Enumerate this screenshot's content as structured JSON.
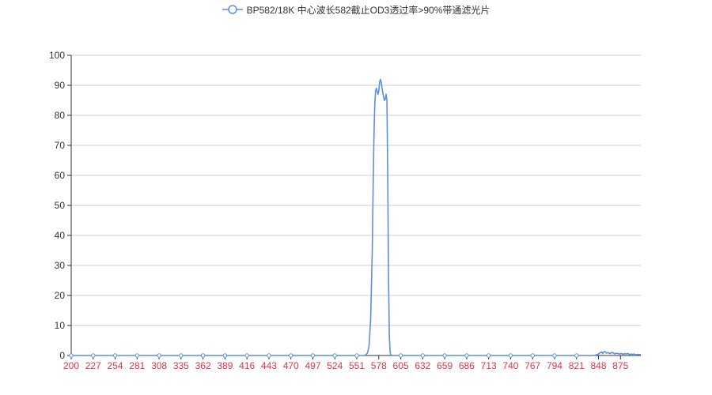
{
  "colors": {
    "series": "#5b8fe0",
    "grid": "#cccccc",
    "axis_line": "#333333",
    "x_tick_label": "#e0344a",
    "y_tick_label": "#333333"
  },
  "legend": {
    "label": "BP582/18K 中心波长582截止OD3透过率>90%带通滤光片",
    "icon": "line-circle-icon"
  },
  "chart_data": {
    "type": "line",
    "title": "",
    "xlabel": "",
    "ylabel": "",
    "xlim": [
      200,
      900
    ],
    "ylim": [
      0,
      100
    ],
    "grid": true,
    "legend_position": "top-center",
    "x_ticks": [
      "200",
      "227",
      "254",
      "281",
      "308",
      "335",
      "362",
      "389",
      "416",
      "443",
      "470",
      "497",
      "524",
      "551",
      "578",
      "605",
      "632",
      "659",
      "686",
      "713",
      "740",
      "767",
      "794",
      "821",
      "848",
      "875"
    ],
    "y_ticks": [
      "0",
      "10",
      "20",
      "30",
      "40",
      "50",
      "60",
      "70",
      "80",
      "90",
      "100"
    ],
    "series": [
      {
        "name": "BP582/18K 中心波长582截止OD3透过率>90%带通滤光片",
        "points": [
          [
            200,
            0
          ],
          [
            300,
            0
          ],
          [
            400,
            0
          ],
          [
            500,
            0
          ],
          [
            560,
            0
          ],
          [
            562,
            0.2
          ],
          [
            564,
            0.8
          ],
          [
            566,
            3
          ],
          [
            568,
            12
          ],
          [
            570,
            35
          ],
          [
            571,
            55
          ],
          [
            572,
            72
          ],
          [
            573,
            83
          ],
          [
            574,
            88
          ],
          [
            575,
            89
          ],
          [
            576,
            88
          ],
          [
            577,
            87
          ],
          [
            578,
            88
          ],
          [
            579,
            91
          ],
          [
            580,
            92
          ],
          [
            581,
            91
          ],
          [
            582,
            89
          ],
          [
            583,
            87.5
          ],
          [
            584,
            86
          ],
          [
            585,
            85
          ],
          [
            586,
            85.5
          ],
          [
            587,
            87
          ],
          [
            588,
            85
          ],
          [
            589,
            60
          ],
          [
            590,
            25
          ],
          [
            591,
            6
          ],
          [
            592,
            1
          ],
          [
            593,
            0.2
          ],
          [
            595,
            0
          ],
          [
            650,
            0
          ],
          [
            700,
            0
          ],
          [
            750,
            0
          ],
          [
            800,
            0
          ],
          [
            840,
            0
          ],
          [
            844,
            0.1
          ],
          [
            848,
            0.5
          ],
          [
            850,
            0.9
          ],
          [
            852,
            1.2
          ],
          [
            853,
            0.6
          ],
          [
            854,
            1.1
          ],
          [
            856,
            1.3
          ],
          [
            858,
            0.8
          ],
          [
            860,
            1
          ],
          [
            862,
            0.6
          ],
          [
            864,
            1
          ],
          [
            866,
            0.9
          ],
          [
            868,
            0.5
          ],
          [
            870,
            0.8
          ],
          [
            872,
            0.6
          ],
          [
            874,
            0.5
          ],
          [
            876,
            0.7
          ],
          [
            878,
            0.4
          ],
          [
            880,
            0.6
          ],
          [
            882,
            0.5
          ],
          [
            884,
            0.7
          ],
          [
            886,
            0.3
          ],
          [
            888,
            0.5
          ],
          [
            890,
            0.4
          ],
          [
            892,
            0.5
          ],
          [
            894,
            0.2
          ],
          [
            896,
            0.4
          ],
          [
            898,
            0.3
          ],
          [
            900,
            0.3
          ]
        ]
      }
    ]
  }
}
